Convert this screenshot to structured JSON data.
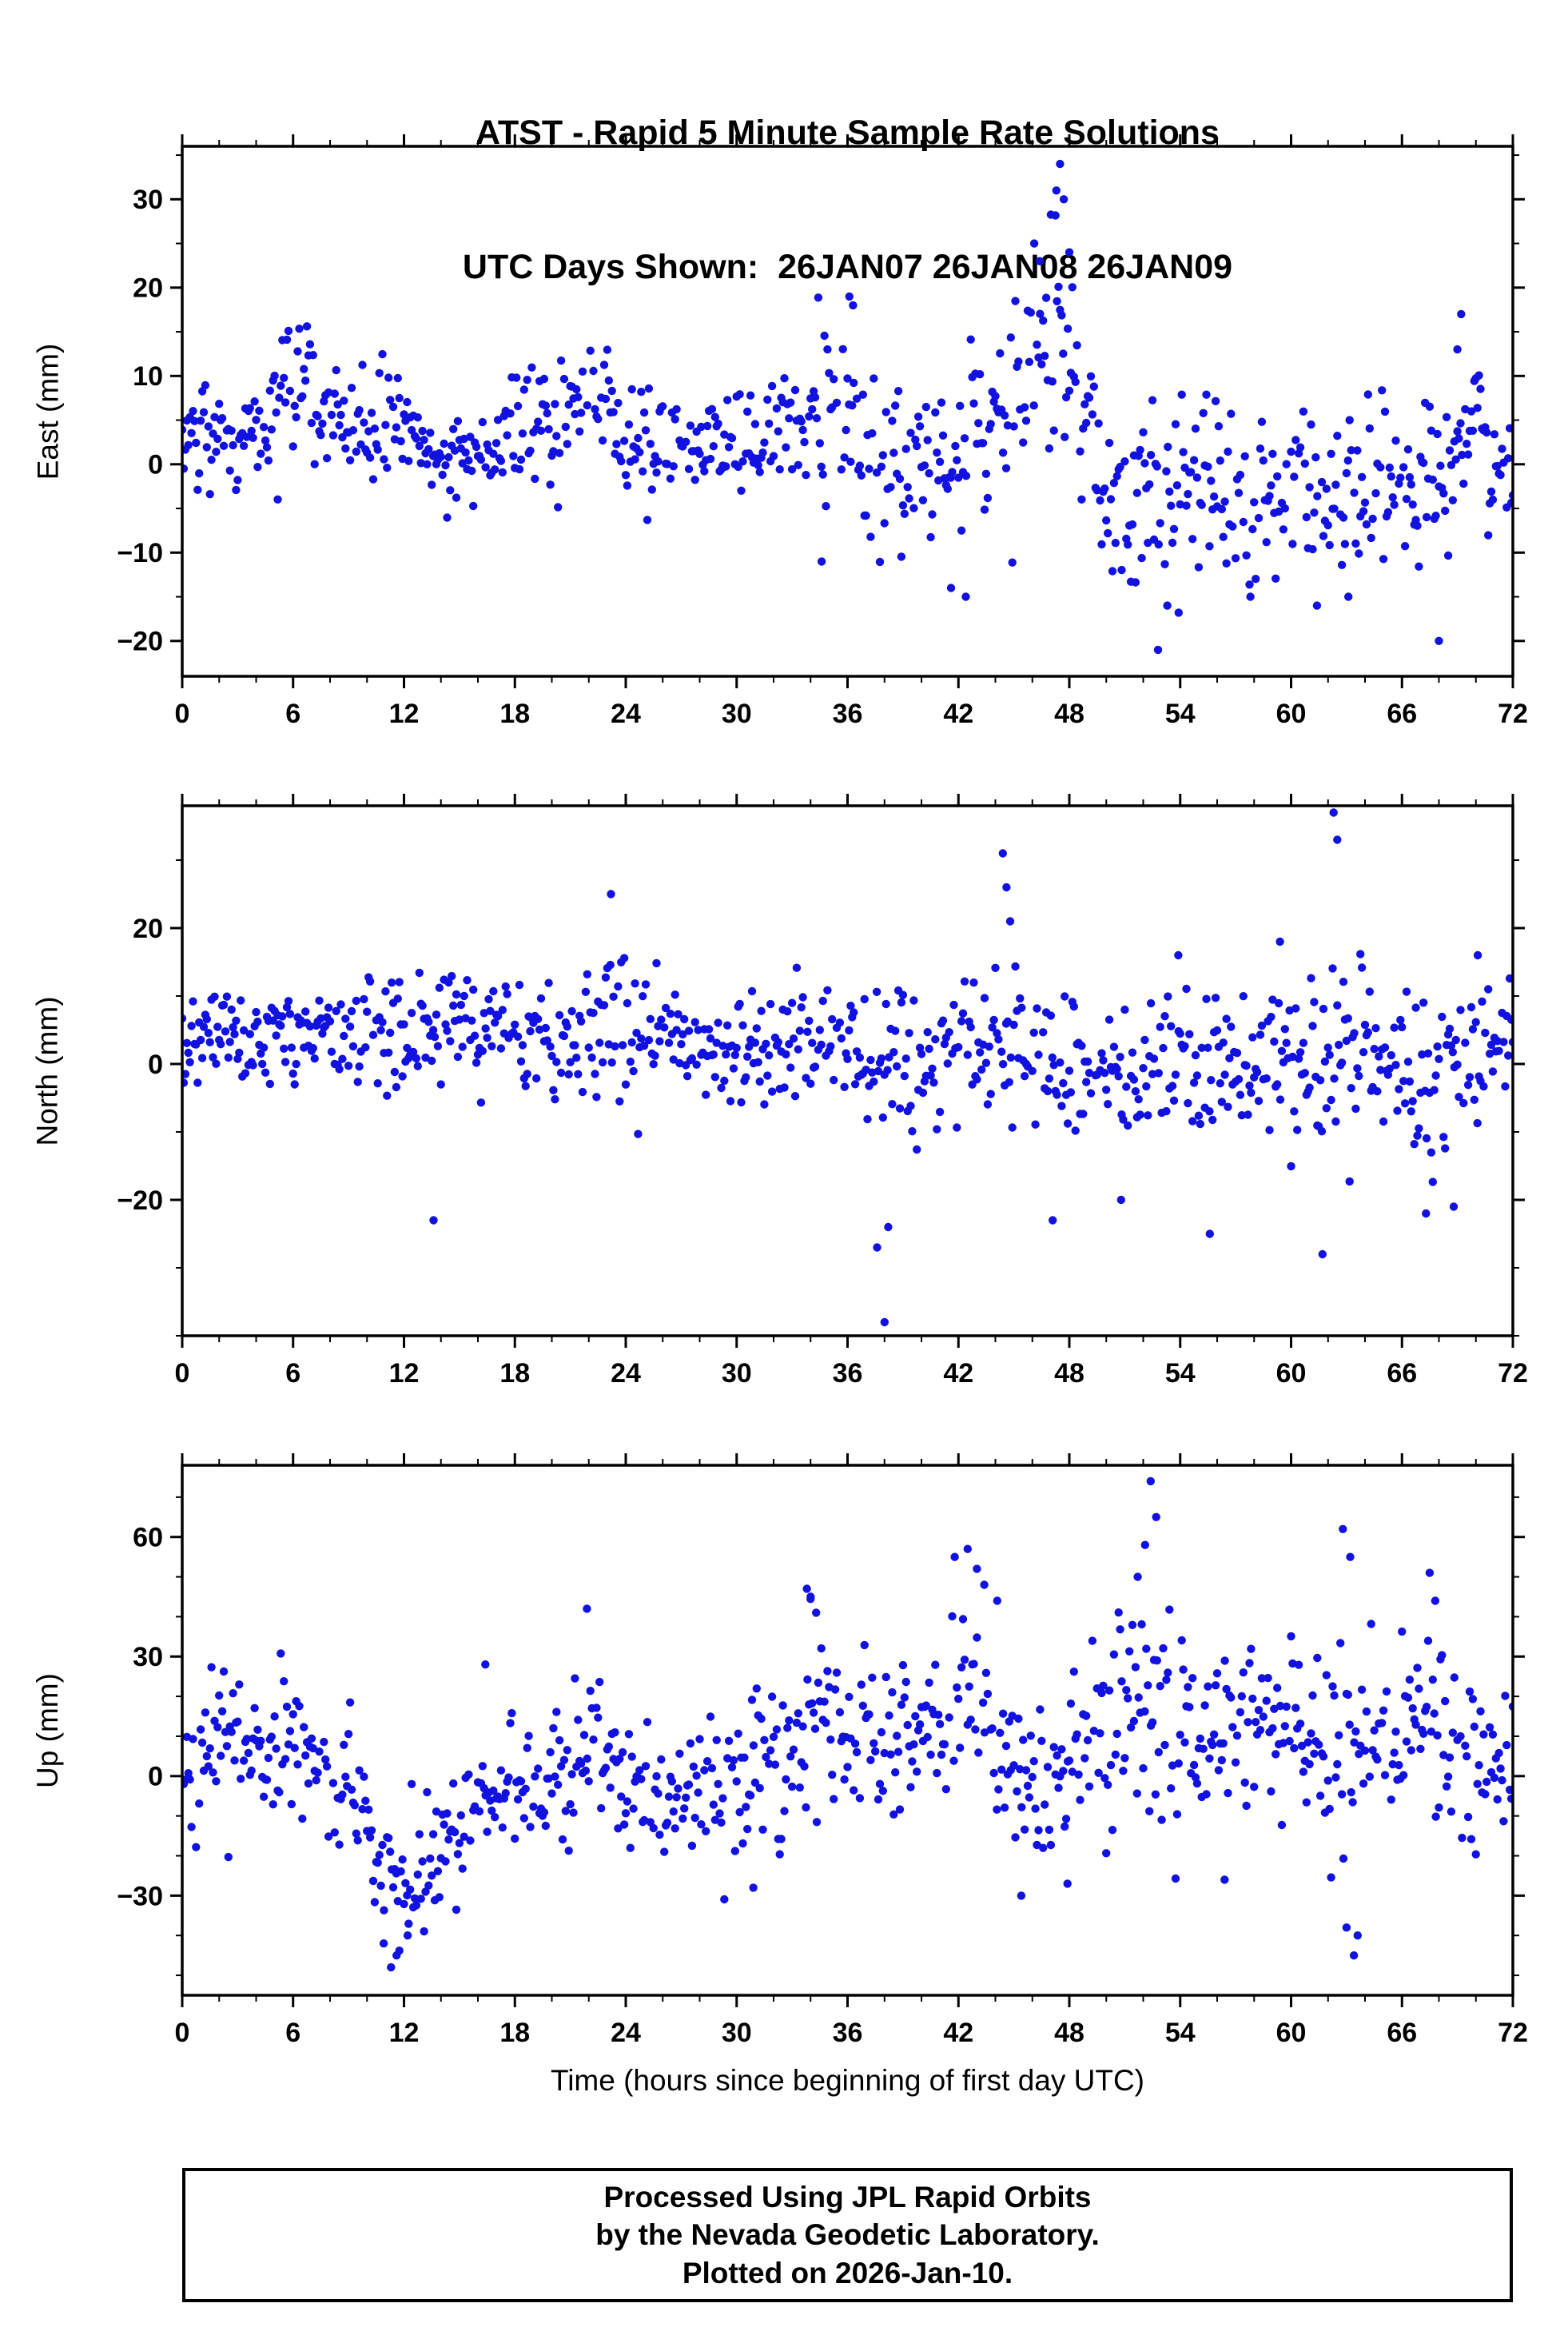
{
  "title": {
    "line1": "ATST - Rapid 5 Minute Sample Rate Solutions",
    "line2": "UTC Days Shown:  26JAN07 26JAN08 26JAN09"
  },
  "xlabel": "Time (hours since beginning of first day UTC)",
  "footer": {
    "line1": "Processed Using JPL Rapid Orbits",
    "line2": "by the Nevada Geodetic Laboratory.",
    "line3": "Plotted on 2026-Jan-10."
  },
  "colors": {
    "marker": "#1212e0",
    "frame": "#000000",
    "text": "#000000"
  },
  "marker_radius": 5.2,
  "chart_data": [
    {
      "type": "scatter",
      "ylabel": "East (mm)",
      "xlim": [
        0,
        72
      ],
      "xticks": [
        0,
        6,
        12,
        18,
        24,
        30,
        36,
        42,
        48,
        54,
        60,
        66,
        72
      ],
      "xminor": 2,
      "ylim": [
        -24,
        36
      ],
      "yticks": [
        -20,
        -10,
        0,
        10,
        20,
        30
      ],
      "yminor": 5,
      "sample_interval_hours": 0.083333,
      "keep_probability": 0.92,
      "seed": 42,
      "trend_segments": [
        [
          0,
          2,
          2.5
        ],
        [
          4,
          4,
          3
        ],
        [
          6,
          9,
          4
        ],
        [
          6.6,
          12,
          4
        ],
        [
          7.2,
          5,
          3
        ],
        [
          10,
          4,
          3
        ],
        [
          12,
          5,
          3
        ],
        [
          14,
          1,
          3
        ],
        [
          16,
          0,
          3
        ],
        [
          18,
          3,
          3
        ],
        [
          20,
          6,
          4
        ],
        [
          21.5,
          7,
          4
        ],
        [
          23,
          7,
          3
        ],
        [
          24,
          3,
          3
        ],
        [
          27,
          2,
          3
        ],
        [
          30,
          3,
          3
        ],
        [
          33,
          4,
          3
        ],
        [
          35,
          7,
          5
        ],
        [
          36,
          5,
          5
        ],
        [
          38,
          -1,
          5
        ],
        [
          40,
          0,
          4
        ],
        [
          42,
          1,
          5
        ],
        [
          44,
          4,
          5
        ],
        [
          46,
          8,
          6
        ],
        [
          47.5,
          18,
          8
        ],
        [
          48.5,
          6,
          5
        ],
        [
          50,
          -3,
          5
        ],
        [
          52,
          -4,
          6
        ],
        [
          54,
          -2,
          5
        ],
        [
          56,
          -4,
          5
        ],
        [
          58,
          -6,
          5
        ],
        [
          60,
          -3,
          5
        ],
        [
          62,
          -6,
          5
        ],
        [
          64,
          -2,
          4
        ],
        [
          66,
          -3,
          4
        ],
        [
          68,
          -1,
          5
        ],
        [
          70,
          2,
          5
        ],
        [
          72,
          -1,
          4
        ]
      ],
      "outliers": [
        [
          34.6,
          -11
        ],
        [
          36.1,
          19
        ],
        [
          36.3,
          18
        ],
        [
          41.6,
          -14
        ],
        [
          42.4,
          -15
        ],
        [
          46.1,
          25
        ],
        [
          46.4,
          23
        ],
        [
          47.3,
          31
        ],
        [
          47.5,
          34
        ],
        [
          47.7,
          30
        ],
        [
          48.0,
          24
        ],
        [
          52.8,
          -21
        ],
        [
          53.3,
          -16
        ],
        [
          57.8,
          -15
        ],
        [
          61.4,
          -16
        ],
        [
          63.1,
          -15
        ],
        [
          68.0,
          -20
        ],
        [
          69.0,
          13
        ],
        [
          69.2,
          17
        ]
      ]
    },
    {
      "type": "scatter",
      "ylabel": "North (mm)",
      "xlim": [
        0,
        72
      ],
      "xticks": [
        0,
        6,
        12,
        18,
        24,
        30,
        36,
        42,
        48,
        54,
        60,
        66,
        72
      ],
      "xminor": 2,
      "ylim": [
        -40,
        38
      ],
      "yticks": [
        -20,
        0,
        20
      ],
      "yminor": 10,
      "sample_interval_hours": 0.083333,
      "keep_probability": 0.92,
      "seed": 1337,
      "trend_segments": [
        [
          0,
          4,
          4
        ],
        [
          4,
          4,
          4
        ],
        [
          8,
          5,
          4
        ],
        [
          12,
          6,
          4
        ],
        [
          16,
          6,
          4
        ],
        [
          20,
          4,
          4
        ],
        [
          23,
          5,
          5
        ],
        [
          26,
          4,
          4
        ],
        [
          30,
          2,
          4
        ],
        [
          33,
          3,
          5
        ],
        [
          36,
          4,
          5
        ],
        [
          38,
          0,
          6
        ],
        [
          40,
          -1,
          5
        ],
        [
          42,
          0,
          5
        ],
        [
          44,
          1,
          6
        ],
        [
          46,
          0,
          5
        ],
        [
          48,
          0,
          5
        ],
        [
          50,
          -2,
          5
        ],
        [
          52,
          -2,
          6
        ],
        [
          54,
          2,
          6
        ],
        [
          56,
          -1,
          5
        ],
        [
          58,
          -2,
          5
        ],
        [
          60,
          0,
          6
        ],
        [
          62,
          3,
          7
        ],
        [
          64,
          2,
          6
        ],
        [
          66,
          -1,
          6
        ],
        [
          68,
          -2,
          6
        ],
        [
          70,
          2,
          5
        ],
        [
          72,
          3,
          4
        ]
      ],
      "outliers": [
        [
          13.6,
          -23
        ],
        [
          23.2,
          25
        ],
        [
          37.6,
          -27
        ],
        [
          38.0,
          -38
        ],
        [
          38.2,
          -24
        ],
        [
          44.4,
          31
        ],
        [
          44.6,
          26
        ],
        [
          44.8,
          21
        ],
        [
          47.1,
          -23
        ],
        [
          50.8,
          -20
        ],
        [
          53.9,
          16
        ],
        [
          55.6,
          -25
        ],
        [
          59.4,
          18
        ],
        [
          61.7,
          -28
        ],
        [
          62.3,
          37
        ],
        [
          62.5,
          33
        ],
        [
          67.3,
          -22
        ],
        [
          68.8,
          -21
        ],
        [
          70.1,
          16
        ]
      ]
    },
    {
      "type": "scatter",
      "ylabel": "Up (mm)",
      "xlim": [
        0,
        72
      ],
      "xticks": [
        0,
        6,
        12,
        18,
        24,
        30,
        36,
        42,
        48,
        54,
        60,
        66,
        72
      ],
      "xminor": 2,
      "ylim": [
        -55,
        78
      ],
      "yticks": [
        -30,
        0,
        30,
        60
      ],
      "yminor": 10,
      "sample_interval_hours": 0.083333,
      "keep_probability": 0.92,
      "seed": 2024,
      "trend_segments": [
        [
          0,
          3,
          8
        ],
        [
          1.5,
          10,
          9
        ],
        [
          3,
          8,
          9
        ],
        [
          5,
          5,
          9
        ],
        [
          7,
          7,
          10
        ],
        [
          9,
          -3,
          9
        ],
        [
          10.5,
          -18,
          9
        ],
        [
          12,
          -25,
          8
        ],
        [
          13.5,
          -22,
          8
        ],
        [
          15,
          -12,
          8
        ],
        [
          17,
          -6,
          9
        ],
        [
          19,
          -1,
          9
        ],
        [
          21,
          7,
          9
        ],
        [
          22,
          9,
          9
        ],
        [
          24,
          0,
          8
        ],
        [
          26,
          -5,
          8
        ],
        [
          28,
          -5,
          8
        ],
        [
          30,
          -4,
          9
        ],
        [
          32,
          6,
          9
        ],
        [
          34,
          13,
          11
        ],
        [
          36,
          11,
          10
        ],
        [
          38,
          10,
          10
        ],
        [
          40,
          12,
          10
        ],
        [
          42,
          18,
          12
        ],
        [
          44,
          10,
          11
        ],
        [
          45.5,
          -2,
          10
        ],
        [
          47,
          0,
          10
        ],
        [
          49,
          8,
          11
        ],
        [
          51,
          13,
          13
        ],
        [
          52.5,
          16,
          14
        ],
        [
          54,
          6,
          11
        ],
        [
          56,
          9,
          11
        ],
        [
          58,
          10,
          10
        ],
        [
          60,
          12,
          10
        ],
        [
          62,
          8,
          12
        ],
        [
          63.5,
          5,
          13
        ],
        [
          65,
          8,
          11
        ],
        [
          67,
          11,
          11
        ],
        [
          69,
          5,
          11
        ],
        [
          71,
          -2,
          10
        ],
        [
          72,
          1,
          10
        ]
      ],
      "outliers": [
        [
          10.9,
          -42
        ],
        [
          11.3,
          -48
        ],
        [
          11.6,
          -45
        ],
        [
          12.2,
          -40
        ],
        [
          16.4,
          28
        ],
        [
          21.9,
          42
        ],
        [
          30.9,
          -28
        ],
        [
          33.8,
          47
        ],
        [
          34.0,
          45
        ],
        [
          34.3,
          41
        ],
        [
          41.8,
          55
        ],
        [
          42.5,
          57
        ],
        [
          43.0,
          52
        ],
        [
          43.4,
          48
        ],
        [
          44.1,
          44
        ],
        [
          45.4,
          -30
        ],
        [
          47.9,
          -27
        ],
        [
          51.7,
          50
        ],
        [
          52.1,
          58
        ],
        [
          52.4,
          74
        ],
        [
          52.7,
          65
        ],
        [
          56.4,
          -26
        ],
        [
          62.8,
          62
        ],
        [
          63.0,
          -38
        ],
        [
          63.2,
          55
        ],
        [
          63.4,
          -45
        ],
        [
          63.6,
          -40
        ],
        [
          67.5,
          51
        ],
        [
          67.8,
          44
        ]
      ]
    }
  ]
}
